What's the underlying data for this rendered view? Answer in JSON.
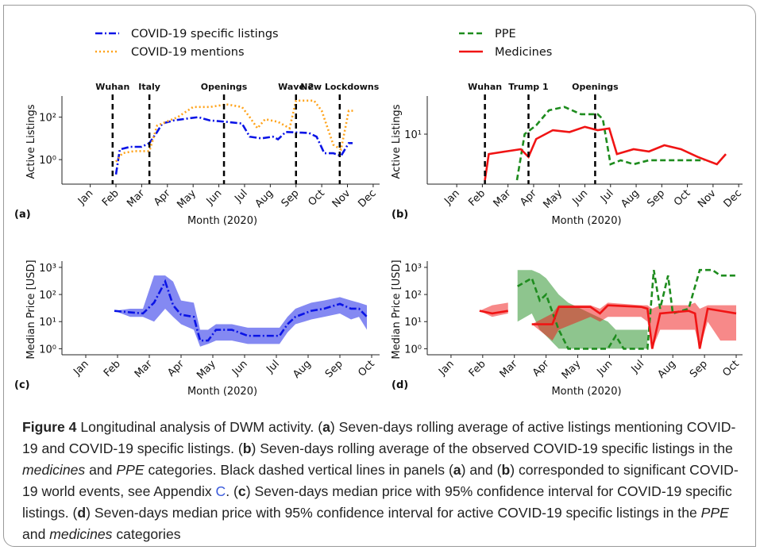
{
  "chart_data": [
    {
      "type": "line",
      "panel": "(a)",
      "xlabel": "Month (2020)",
      "ylabel": "Active Listings",
      "yscale": "log",
      "legend": true,
      "xlim": [
        -1.1,
        11.25
      ],
      "ylim": [
        0.07,
        700
      ],
      "xticks": [
        {
          "value": 0,
          "label": "Jan"
        },
        {
          "value": 1,
          "label": "Feb"
        },
        {
          "value": 2,
          "label": "Mar"
        },
        {
          "value": 3,
          "label": "Apr"
        },
        {
          "value": 4,
          "label": "May"
        },
        {
          "value": 5,
          "label": "Jun"
        },
        {
          "value": 6,
          "label": "Jul"
        },
        {
          "value": 7,
          "label": "Aug"
        },
        {
          "value": 8,
          "label": "Sep"
        },
        {
          "value": 9,
          "label": "Oct"
        },
        {
          "value": 10,
          "label": "Nov"
        },
        {
          "value": 11,
          "label": "Dec"
        }
      ],
      "yticks": [
        {
          "value": 1,
          "label": "10⁰"
        },
        {
          "value": 100,
          "label": "10²"
        }
      ],
      "events": [
        {
          "x": 0.87,
          "label": "Wuhan"
        },
        {
          "x": 2.3,
          "label": "Italy"
        },
        {
          "x": 5.2,
          "label": "Openings"
        },
        {
          "x": 8.0,
          "label": "Wave 2"
        },
        {
          "x": 9.7,
          "label": "New Lockdowns"
        }
      ],
      "series": [
        {
          "name": "COVID-19 specific listings",
          "color": "#0a14e6",
          "dash": "dashdot",
          "x": [
            1.0,
            1.15,
            1.55,
            2.0,
            2.3,
            2.6,
            2.8,
            3.25,
            3.9,
            4.2,
            4.65,
            5.3,
            5.9,
            6.2,
            6.65,
            7.1,
            7.3,
            7.6,
            8.5,
            8.8,
            9.1,
            9.45,
            9.75,
            10.05,
            10.2
          ],
          "values": [
            0.2,
            3,
            4,
            4,
            6,
            20,
            50,
            70,
            90,
            100,
            70,
            60,
            50,
            12,
            10,
            12,
            9,
            20,
            18,
            12,
            2,
            2,
            1.5,
            6,
            6
          ]
        },
        {
          "name": "COVID-19 mentions",
          "color": "#ffa31a",
          "dash": "dotted",
          "x": [
            1.0,
            1.25,
            1.7,
            2.3,
            2.6,
            2.95,
            3.4,
            4.0,
            4.65,
            5.3,
            5.9,
            6.2,
            6.5,
            6.8,
            7.3,
            7.75,
            8.0,
            8.7,
            9.0,
            9.45,
            9.75,
            10.05,
            10.3
          ],
          "values": [
            0.8,
            2,
            2.5,
            2.5,
            40,
            60,
            100,
            300,
            300,
            400,
            300,
            100,
            30,
            80,
            60,
            30,
            600,
            600,
            200,
            5,
            3,
            200,
            200
          ]
        }
      ]
    },
    {
      "type": "line",
      "panel": "(b)",
      "xlabel": "Month (2020)",
      "ylabel": "Active Listings",
      "yscale": "log",
      "legend": true,
      "xlim": [
        -1.15,
        11.15
      ],
      "ylim": [
        1,
        50
      ],
      "xticks": [
        {
          "value": 0,
          "label": "Jan"
        },
        {
          "value": 1,
          "label": "Feb"
        },
        {
          "value": 2,
          "label": "Mar"
        },
        {
          "value": 3,
          "label": "Apr"
        },
        {
          "value": 4,
          "label": "May"
        },
        {
          "value": 5,
          "label": "Jun"
        },
        {
          "value": 6,
          "label": "Jul"
        },
        {
          "value": 7,
          "label": "Aug"
        },
        {
          "value": 8,
          "label": "Sep"
        },
        {
          "value": 9,
          "label": "Oct"
        },
        {
          "value": 10,
          "label": "Nov"
        },
        {
          "value": 11,
          "label": "Dec"
        }
      ],
      "yticks": [
        {
          "value": 10,
          "label": "10¹"
        }
      ],
      "events": [
        {
          "x": 1.1,
          "label": "Wuhan"
        },
        {
          "x": 2.8,
          "label": "Trump 1"
        },
        {
          "x": 5.4,
          "label": "Openings"
        }
      ],
      "series": [
        {
          "name": "PPE",
          "color": "#1e8c1e",
          "dash": "dashed",
          "x": [
            2.35,
            2.65,
            3.1,
            3.6,
            4.2,
            4.85,
            5.5,
            5.7,
            6.0,
            6.4,
            6.9,
            7.5,
            8.4,
            9.65
          ],
          "values": [
            1.2,
            10,
            15,
            30,
            35,
            25,
            25,
            20,
            2.5,
            3,
            2.5,
            3,
            3,
            3
          ]
        },
        {
          "name": "Medicines",
          "color": "#f01414",
          "dash": "solid",
          "x": [
            1.1,
            1.25,
            1.9,
            2.5,
            2.8,
            3.1,
            3.75,
            4.4,
            5.0,
            5.5,
            5.95,
            6.25,
            6.9,
            7.5,
            8.1,
            8.75,
            9.4,
            10.15,
            10.5
          ],
          "values": [
            1.2,
            4,
            4.5,
            5,
            3.5,
            8,
            12,
            11,
            14,
            12,
            13,
            4,
            5,
            4.5,
            6,
            5,
            3.5,
            2.5,
            4
          ]
        }
      ]
    },
    {
      "type": "line",
      "panel": "(c)",
      "xlabel": "Month (2020)",
      "ylabel": "Median Price [USD]",
      "yscale": "log",
      "xlim": [
        -0.75,
        9.25
      ],
      "ylim": [
        0.6,
        1300
      ],
      "xticks": [
        {
          "value": 0,
          "label": "Jan"
        },
        {
          "value": 1,
          "label": "Feb"
        },
        {
          "value": 2,
          "label": "Mar"
        },
        {
          "value": 3,
          "label": "Apr"
        },
        {
          "value": 4,
          "label": "May"
        },
        {
          "value": 5,
          "label": "Jun"
        },
        {
          "value": 6,
          "label": "Jul"
        },
        {
          "value": 7,
          "label": "Aug"
        },
        {
          "value": 8,
          "label": "Sep"
        },
        {
          "value": 9,
          "label": "Oct"
        }
      ],
      "yticks": [
        {
          "value": 1,
          "label": "10⁰"
        },
        {
          "value": 10,
          "label": "10¹"
        },
        {
          "value": 100,
          "label": "10²"
        },
        {
          "value": 1000,
          "label": "10³"
        }
      ],
      "series": [
        {
          "color": "#0a14e6",
          "dash": "dashdot",
          "x": [
            0.9,
            1.4,
            1.8,
            2.15,
            2.5,
            2.75,
            3.0,
            3.4,
            3.6,
            3.85,
            4.1,
            4.6,
            5.1,
            5.85,
            6.1,
            6.35,
            6.6,
            7.1,
            7.5,
            8.0,
            8.35,
            8.6,
            8.85
          ],
          "values": [
            25,
            22,
            20,
            50,
            300,
            40,
            18,
            15,
            2,
            2,
            5,
            5,
            3,
            3,
            3,
            8,
            15,
            25,
            30,
            45,
            30,
            30,
            15
          ],
          "lower": [
            25,
            15,
            15,
            10,
            30,
            15,
            8,
            5,
            1.2,
            1.5,
            2,
            2,
            1.5,
            1.5,
            1.5,
            4,
            8,
            12,
            15,
            20,
            12,
            15,
            5
          ],
          "upper": [
            25,
            30,
            30,
            500,
            500,
            300,
            60,
            50,
            5,
            5,
            8,
            8,
            6,
            6,
            6,
            15,
            30,
            50,
            60,
            80,
            60,
            50,
            40
          ]
        }
      ]
    },
    {
      "type": "line",
      "panel": "(d)",
      "xlabel": "Month (2020)",
      "ylabel": "Median Price [USD]",
      "yscale": "log",
      "xlim": [
        -0.75,
        9.2
      ],
      "ylim": [
        0.6,
        1300
      ],
      "xticks": [
        {
          "value": 0,
          "label": "Jan"
        },
        {
          "value": 1,
          "label": "Feb"
        },
        {
          "value": 2,
          "label": "Mar"
        },
        {
          "value": 3,
          "label": "Apr"
        },
        {
          "value": 4,
          "label": "May"
        },
        {
          "value": 5,
          "label": "Jun"
        },
        {
          "value": 6,
          "label": "Jul"
        },
        {
          "value": 7,
          "label": "Aug"
        },
        {
          "value": 8,
          "label": "Sep"
        },
        {
          "value": 9,
          "label": "Oct"
        }
      ],
      "yticks": [
        {
          "value": 1,
          "label": "10⁰"
        },
        {
          "value": 10,
          "label": "10¹"
        },
        {
          "value": 100,
          "label": "10²"
        },
        {
          "value": 1000,
          "label": "10³"
        }
      ],
      "series": [
        {
          "color": "#1e8c1e",
          "dash": "dashed",
          "x": [
            2.1,
            2.55,
            2.8,
            3.0,
            3.4,
            3.7,
            4.95,
            5.2,
            5.45,
            6.2,
            6.4,
            6.6,
            6.85,
            7.0,
            7.5,
            7.85,
            8.25,
            8.5,
            9.0
          ],
          "values": [
            200,
            400,
            60,
            100,
            5,
            1,
            1,
            3,
            1,
            1,
            800,
            30,
            500,
            20,
            30,
            800,
            800,
            500,
            500
          ],
          "lower": [
            10,
            20,
            5,
            3,
            1,
            1,
            1,
            1,
            1,
            1,
            null,
            null,
            null,
            null,
            null,
            null,
            null,
            null,
            null
          ],
          "upper": [
            800,
            800,
            600,
            400,
            100,
            50,
            10,
            5,
            5,
            5,
            null,
            null,
            null,
            null,
            null,
            null,
            null,
            null,
            null
          ]
        },
        {
          "color": "#f01414",
          "dash": "solid",
          "x": [
            0.9,
            1.3,
            1.8,
            2.2,
            2.55,
            3.2,
            3.4,
            4.4,
            4.7,
            4.95,
            6.0,
            6.2,
            6.35,
            6.6,
            7.5,
            7.7,
            7.85,
            8.1,
            8.5,
            9.0
          ],
          "values": [
            25,
            20,
            25,
            null,
            8,
            8,
            35,
            35,
            20,
            40,
            35,
            30,
            1,
            20,
            25,
            20,
            1,
            30,
            25,
            20
          ],
          "lower": [
            25,
            15,
            20,
            null,
            8,
            2,
            5,
            15,
            10,
            15,
            15,
            10,
            1,
            5,
            5,
            5,
            1,
            10,
            2,
            2
          ],
          "upper": [
            25,
            40,
            50,
            null,
            8,
            20,
            40,
            40,
            30,
            50,
            40,
            40,
            30,
            40,
            40,
            50,
            30,
            40,
            40,
            40
          ]
        }
      ]
    }
  ],
  "caption": [
    "Figure 4",
    "  Longitudinal analysis of DWM activity. (",
    "a",
    ") Seven-days rolling average of active listings mentioning COVID-19 and COVID-19 specific listings. (",
    "b",
    ") Seven-days rolling average of the observed COVID-19 specific listings in the ",
    "medicines",
    " and ",
    "PPE",
    " categories. Black dashed vertical lines in panels (",
    "a",
    ") and (",
    "b",
    ") corresponded to significant COVID-19 world events, see Appendix ",
    "C",
    ". (",
    "c",
    ") Seven-days median price with 95% confidence interval for COVID-19 specific listings. (",
    "d",
    ") Seven-days median price with 95% confidence interval for active COVID-19 specific listings in the ",
    "PPE",
    " and ",
    "medicines",
    " categories"
  ]
}
